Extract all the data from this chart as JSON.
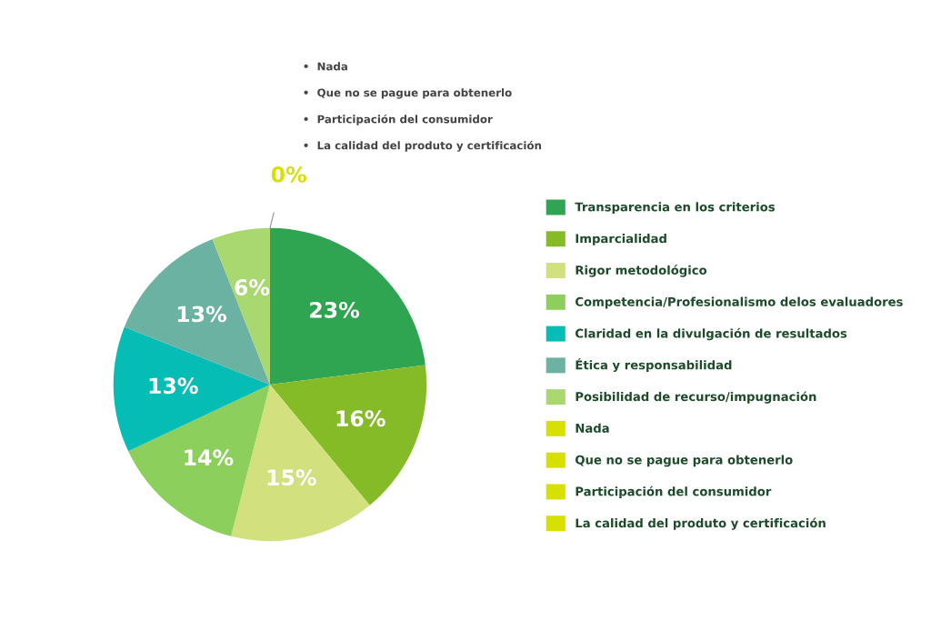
{
  "chart_data": {
    "type": "pie",
    "categories": [
      "Transparencia en los criterios",
      "Imparcialidad",
      "Rigor metodológico",
      "Competencia/Profesionalismo delos evaluadores",
      "Claridad en la divulgación de resultados",
      "Ética y responsabilidad",
      "Posibilidad de recurso/impugnación",
      "Nada",
      "Que no se pague para obtenerlo",
      "Participación del consumidor",
      "La calidad del produto y certificación"
    ],
    "values": [
      23,
      16,
      15,
      14,
      13,
      13,
      6,
      0,
      0,
      0,
      0
    ],
    "colors": [
      "#2fa552",
      "#84bb26",
      "#d3e07e",
      "#8ccf5c",
      "#05bdb4",
      "#6bb2a3",
      "#a9d770",
      "#d8e000",
      "#d8e000",
      "#d8e000",
      "#d8e000"
    ],
    "value_labels": [
      "23%",
      "16%",
      "15%",
      "14%",
      "13%",
      "13%",
      "6%",
      "0%",
      null,
      null,
      null
    ],
    "legend": "right",
    "annotations": [
      "•  Nada",
      "•  Que no se pague para obtenerlo",
      "•  Participación del consumidor",
      "•  La calidad del produto y certificación"
    ]
  }
}
